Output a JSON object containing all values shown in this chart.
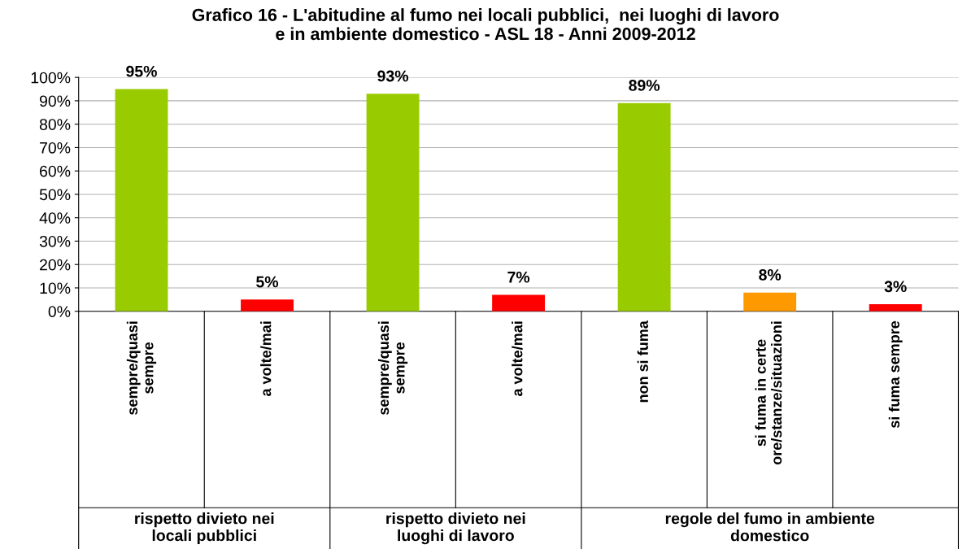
{
  "chart_data": {
    "type": "bar",
    "title": "Grafico 16 - L'abitudine al fumo nei locali pubblici,  nei luoghi di lavoro\ne in ambiente domestico - ASL 18 - Anni 2009-2012",
    "categories": [
      "sempre/quasi\nsempre",
      "a volte/mai",
      "sempre/quasi\nsempre",
      "a volte/mai",
      "non si fuma",
      "si fuma in certe\nore/stanze/situazioni",
      "si fuma sempre"
    ],
    "values": [
      95,
      5,
      93,
      7,
      89,
      8,
      3
    ],
    "colors": [
      "#99cc00",
      "#ff0000",
      "#99cc00",
      "#ff0000",
      "#99cc00",
      "#ff9900",
      "#ff0000"
    ],
    "data_labels": true,
    "value_labels": [
      "95%",
      "5%",
      "93%",
      "7%",
      "89%",
      "8%",
      "3%"
    ],
    "annotations": [
      "rispetto divieto nei\nlocali pubblici",
      "rispetto divieto nei\nluoghi di lavoro",
      "regole del fumo in ambiente\ndomestico"
    ],
    "ylim": [
      0,
      100
    ],
    "yticks": [
      {
        "value": 0,
        "label": "0%"
      },
      {
        "value": 10,
        "label": "10%"
      },
      {
        "value": 20,
        "label": "20%"
      },
      {
        "value": 30,
        "label": "30%"
      },
      {
        "value": 40,
        "label": "40%"
      },
      {
        "value": 50,
        "label": "50%"
      },
      {
        "value": 60,
        "label": "60%"
      },
      {
        "value": 70,
        "label": "70%"
      },
      {
        "value": 80,
        "label": "80%"
      },
      {
        "value": 90,
        "label": "90%"
      },
      {
        "value": 100,
        "label": "100%"
      }
    ],
    "grid": "y"
  }
}
